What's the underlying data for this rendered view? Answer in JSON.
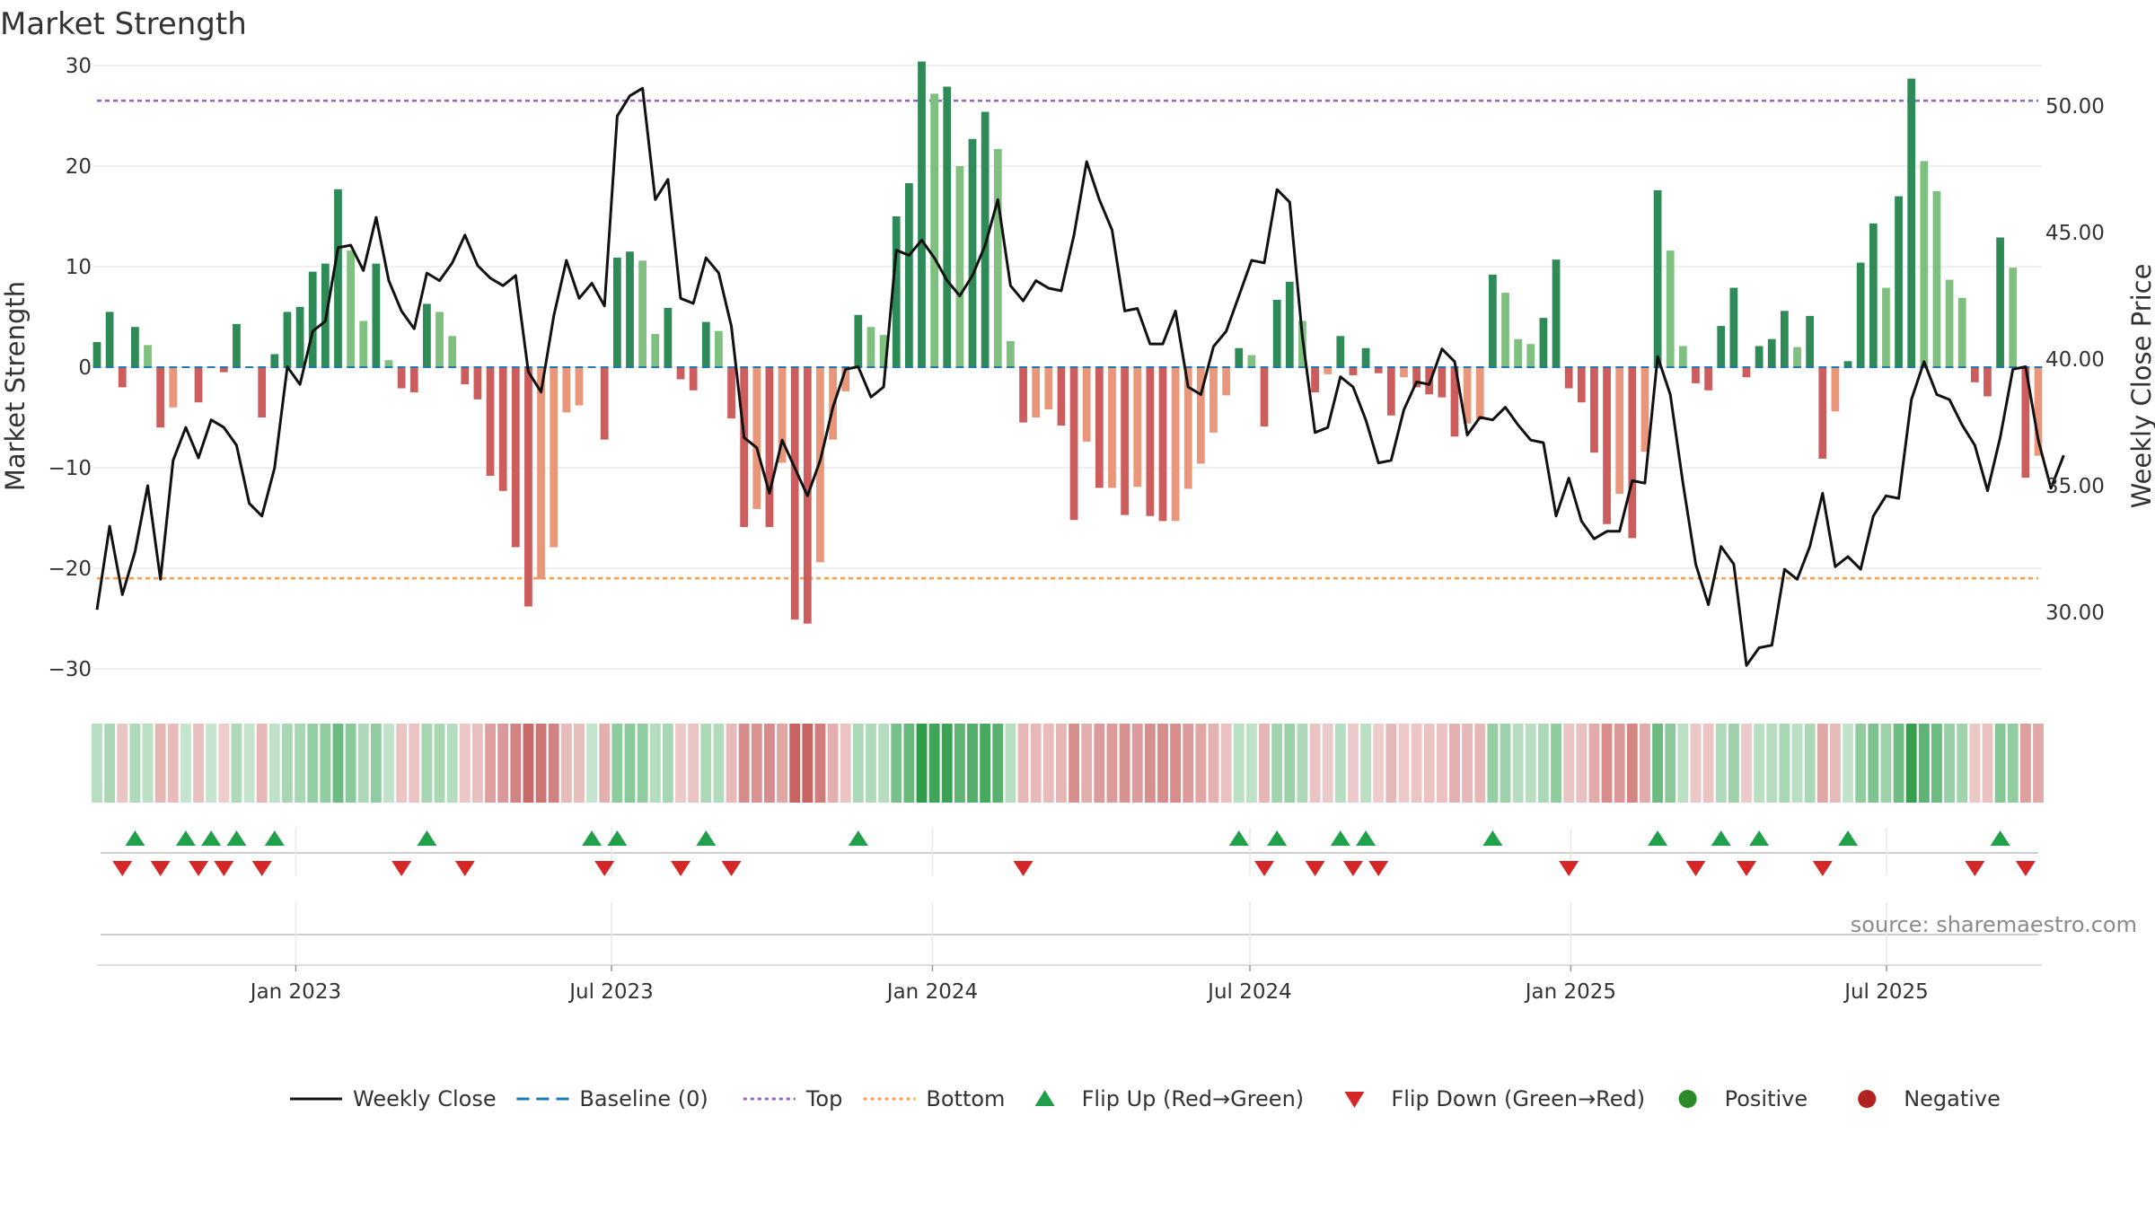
{
  "chart_data": {
    "type": "bar",
    "title": "Market Strength",
    "ylabel": "Market Strength",
    "y2label": "Weekly Close Price",
    "ylim": [
      -33,
      30.5
    ],
    "y2lim": [
      27.3,
      50.8
    ],
    "yticks": [
      "30",
      "20",
      "10",
      "0",
      "−10",
      "−20",
      "−30"
    ],
    "y2ticks": [
      "50.00",
      "45.00",
      "40.00",
      "35.00",
      "30.00"
    ],
    "xticks": [
      "Jan 2023",
      "Jul 2023",
      "Jan 2024",
      "Jul 2024",
      "Jan 2025",
      "Jul 2025"
    ],
    "start_date": "2022-09-09",
    "end_date": "2025-09-26",
    "top_line": 26.5,
    "bottom_line": -21,
    "baseline": 0,
    "strength": [
      2.5,
      5.5,
      -2,
      4,
      2.2,
      -6,
      -4,
      0,
      -3.5,
      0,
      -0.5,
      4.3,
      0,
      -5,
      1.3,
      5.5,
      6,
      9.5,
      10.3,
      17.7,
      11.6,
      4.6,
      10.3,
      0.7,
      -2.1,
      -2.5,
      6.3,
      5.5,
      3.1,
      -1.7,
      -3.2,
      -10.8,
      -12.3,
      -17.9,
      -23.8,
      -21.1,
      -17.9,
      -4.5,
      -3.8,
      0,
      -7.2,
      10.9,
      11.5,
      10.6,
      3.3,
      5.9,
      -1.2,
      -2.3,
      4.5,
      3.6,
      -5.1,
      -15.9,
      -14.1,
      -15.9,
      -9.5,
      -25.1,
      -25.5,
      -19.4,
      -7.2,
      -2.4,
      5.2,
      4,
      3.2,
      15,
      18.3,
      30.4,
      27.2,
      27.9,
      20,
      22.7,
      25.4,
      21.7,
      2.6,
      -5.5,
      -5,
      -4.2,
      -5.8,
      -15.2,
      -7.4,
      -12,
      -12,
      -14.7,
      -11.9,
      -14.8,
      -15.3,
      -15.3,
      -12.1,
      -9.6,
      -6.5,
      -2.8,
      1.9,
      1.2,
      -5.9,
      6.7,
      8.5,
      4.6,
      -2.5,
      -0.7,
      3.1,
      -0.8,
      1.9,
      -0.6,
      -4.8,
      -1,
      -2,
      -2.7,
      -3,
      -6.9,
      -5.6,
      -5.2,
      9.2,
      7.4,
      2.8,
      2.3,
      4.9,
      10.7,
      -2.1,
      -3.5,
      -8.5,
      -15.6,
      -12.6,
      -17,
      -8.4,
      17.6,
      11.6,
      2.1,
      -1.6,
      -2.3,
      4.1,
      7.9,
      -1,
      2.1,
      2.8,
      5.6,
      2,
      5.1,
      -9.1,
      -4.4,
      0.6,
      10.4,
      14.3,
      7.9,
      17,
      28.7,
      20.5,
      17.5,
      8.7,
      6.9,
      -1.5,
      -2.9,
      12.9,
      9.9,
      -11,
      -8.8
    ],
    "close": [
      30.1,
      33.4,
      30.7,
      32.4,
      35,
      31.3,
      36,
      37.3,
      36.1,
      37.6,
      37.3,
      36.6,
      34.3,
      33.8,
      35.7,
      39.7,
      39,
      41.1,
      41.5,
      44.4,
      44.5,
      43.5,
      45.6,
      43.1,
      41.9,
      41.2,
      43.4,
      43.1,
      43.8,
      44.9,
      43.7,
      43.2,
      42.9,
      43.3,
      39.5,
      38.7,
      41.7,
      43.9,
      42.4,
      43,
      42.1,
      49.6,
      50.4,
      50.7,
      46.3,
      47.1,
      42.4,
      42.2,
      44,
      43.4,
      41.3,
      36.9,
      36.5,
      34.7,
      36.8,
      35.7,
      34.6,
      36,
      38.1,
      39.6,
      39.7,
      38.5,
      38.9,
      44.3,
      44.1,
      44.7,
      44,
      43.1,
      42.5,
      43.3,
      44.5,
      46.3,
      42.9,
      42.3,
      43.1,
      42.8,
      42.7,
      44.9,
      47.8,
      46.3,
      45.1,
      41.9,
      42,
      40.6,
      40.6,
      41.9,
      38.9,
      38.6,
      40.5,
      41.1,
      42.5,
      43.9,
      43.8,
      46.7,
      46.2,
      40.9,
      37.1,
      37.3,
      39.3,
      38.9,
      37.6,
      35.9,
      36,
      38,
      39.1,
      39,
      40.4,
      39.9,
      37,
      37.7,
      37.6,
      38.1,
      37.4,
      36.8,
      36.7,
      33.8,
      35.3,
      33.6,
      32.9,
      33.2,
      33.2,
      35.2,
      35.1,
      40.1,
      38.6,
      35.1,
      31.9,
      30.3,
      32.6,
      31.9,
      27.9,
      28.6,
      28.7,
      31.7,
      31.3,
      32.6,
      34.7,
      31.8,
      32.2,
      31.7,
      33.8,
      34.6,
      34.5,
      38.4,
      39.9,
      38.6,
      38.4,
      37.4,
      36.6,
      34.8,
      36.9,
      39.6,
      39.7,
      36.8,
      34.9,
      36.2
    ]
  },
  "legend": [
    {
      "label": "Weekly Close",
      "kind": "line",
      "color": "#111111"
    },
    {
      "label": "Baseline (0)",
      "kind": "dash",
      "color": "#1f77b4"
    },
    {
      "label": "Top",
      "kind": "dot",
      "color": "#9467bd"
    },
    {
      "label": "Bottom",
      "kind": "dot",
      "color": "#ff9f4a"
    },
    {
      "label": "Flip Up (Red→Green)",
      "kind": "tri-up",
      "color": "#21a04a"
    },
    {
      "label": "Flip Down (Green→Red)",
      "kind": "tri-down",
      "color": "#d62728"
    },
    {
      "label": "Positive",
      "kind": "circle",
      "color": "#2a8a2a"
    },
    {
      "label": "Negative",
      "kind": "circle",
      "color": "#b22222"
    }
  ],
  "source": "source: sharemaestro.com",
  "colors": {
    "pos_strong": "#2e8b57",
    "pos_weak": "#7fbf7f",
    "neg_strong": "#cd5c5c",
    "neg_weak": "#e9967a",
    "close_line": "#111111",
    "flip_up": "#21a04a",
    "flip_down": "#d62728"
  }
}
